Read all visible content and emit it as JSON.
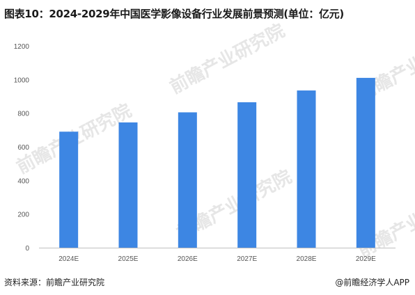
{
  "header": {
    "title": "图表10：2024-2029年中国医学影像设备行业发展前景预测(单位：亿元)"
  },
  "footer": {
    "source": "资料来源：前瞻产业研究院",
    "brand": "@前瞻经济学人APP"
  },
  "watermark": {
    "text": "前瞻产业研究院"
  },
  "colors": {
    "bar": "#3d86e3",
    "axis": "#bfbfbf"
  },
  "chart_data": {
    "type": "bar",
    "title": "图表10：2024-2029年中国医学影像设备行业发展前景预测(单位：亿元)",
    "categories": [
      "2024E",
      "2025E",
      "2026E",
      "2027E",
      "2028E",
      "2029E"
    ],
    "values": [
      690,
      745,
      805,
      865,
      935,
      1010
    ],
    "ylim": [
      0,
      1200
    ],
    "yticks": [
      0,
      200,
      400,
      600,
      800,
      1000,
      1200
    ],
    "xlabel": "",
    "ylabel": "",
    "grid": false,
    "legend": "none"
  }
}
